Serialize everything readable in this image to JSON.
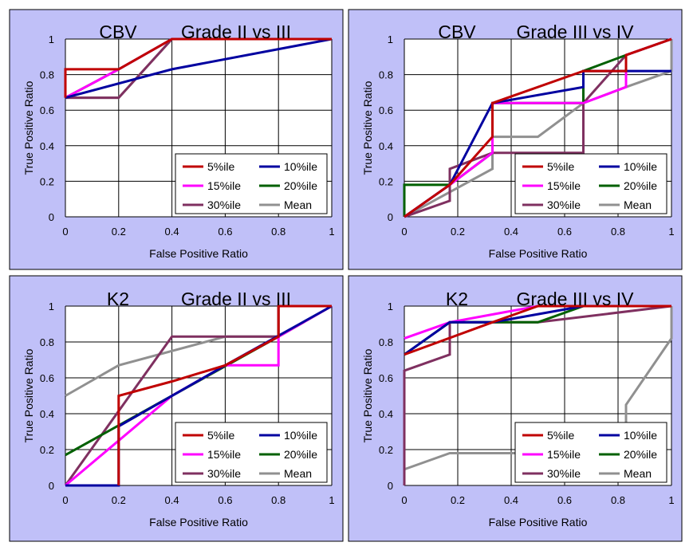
{
  "series_colors": {
    "5%ile": "#c00000",
    "10%ile": "#0000a0",
    "15%ile": "#ff00ff",
    "20%ile": "#006000",
    "30%ile": "#7f3060",
    "Mean": "#909090"
  },
  "chart_data": [
    {
      "type": "line",
      "title_param": "CBV",
      "title_grade": "Grade II vs III",
      "xlabel": "False Positive Ratio",
      "ylabel": "True Positive Ratio",
      "xlim": [
        0,
        1
      ],
      "ylim": [
        0,
        1
      ],
      "xticks": [
        "0",
        "0.2",
        "0.4",
        "0.6",
        "0.8",
        "1"
      ],
      "yticks": [
        "0",
        "0.2",
        "0.4",
        "0.6",
        "0.8",
        "1"
      ],
      "legend_position": "bottom-right",
      "series": [
        {
          "name": "5%ile",
          "points": [
            [
              0,
              0.67
            ],
            [
              0,
              0.83
            ],
            [
              0.2,
              0.83
            ],
            [
              0.4,
              1
            ],
            [
              1,
              1
            ]
          ]
        },
        {
          "name": "10%ile",
          "points": [
            [
              0,
              0.67
            ],
            [
              0.4,
              0.83
            ],
            [
              1,
              1
            ]
          ]
        },
        {
          "name": "15%ile",
          "points": [
            [
              0,
              0.67
            ],
            [
              0.2,
              0.83
            ],
            [
              0.4,
              1
            ],
            [
              1,
              1
            ]
          ]
        },
        {
          "name": "20%ile",
          "points": [
            [
              0,
              0.67
            ],
            [
              0.2,
              0.83
            ],
            [
              0.4,
              1
            ],
            [
              1,
              1
            ]
          ]
        },
        {
          "name": "30%ile",
          "points": [
            [
              0,
              0.67
            ],
            [
              0.2,
              0.67
            ],
            [
              0.4,
              1
            ],
            [
              1,
              1
            ]
          ]
        },
        {
          "name": "Mean",
          "points": [
            [
              0,
              0.67
            ],
            [
              0.2,
              0.67
            ],
            [
              0.4,
              1
            ],
            [
              1,
              1
            ]
          ]
        }
      ]
    },
    {
      "type": "line",
      "title_param": "CBV",
      "title_grade": "Grade III vs IV",
      "xlabel": "False Positive Ratio",
      "ylabel": "True Positive Ratio",
      "xlim": [
        0,
        1
      ],
      "ylim": [
        0,
        1
      ],
      "xticks": [
        "0",
        "0.2",
        "0.4",
        "0.6",
        "0.8",
        "1"
      ],
      "yticks": [
        "0",
        "0.2",
        "0.4",
        "0.6",
        "0.8",
        "1"
      ],
      "legend_position": "bottom-right",
      "series": [
        {
          "name": "5%ile",
          "points": [
            [
              0,
              0
            ],
            [
              0.17,
              0.18
            ],
            [
              0.33,
              0.45
            ],
            [
              0.33,
              0.64
            ],
            [
              0.67,
              0.82
            ],
            [
              0.83,
              0.82
            ],
            [
              0.83,
              0.91
            ],
            [
              1,
              1
            ]
          ]
        },
        {
          "name": "10%ile",
          "points": [
            [
              0,
              0
            ],
            [
              0.17,
              0.18
            ],
            [
              0.33,
              0.64
            ],
            [
              0.67,
              0.73
            ],
            [
              0.67,
              0.82
            ],
            [
              1,
              0.82
            ]
          ]
        },
        {
          "name": "15%ile",
          "points": [
            [
              0,
              0
            ],
            [
              0.17,
              0.18
            ],
            [
              0.33,
              0.36
            ],
            [
              0.33,
              0.64
            ],
            [
              0.67,
              0.64
            ],
            [
              0.83,
              0.73
            ],
            [
              0.83,
              0.91
            ],
            [
              1,
              1
            ]
          ]
        },
        {
          "name": "20%ile",
          "points": [
            [
              0,
              0
            ],
            [
              0,
              0.18
            ],
            [
              0.17,
              0.18
            ],
            [
              0.33,
              0.36
            ],
            [
              0.33,
              0.64
            ],
            [
              0.67,
              0.64
            ],
            [
              0.67,
              0.82
            ],
            [
              0.83,
              0.91
            ],
            [
              1,
              1
            ]
          ]
        },
        {
          "name": "30%ile",
          "points": [
            [
              0,
              0
            ],
            [
              0.17,
              0.09
            ],
            [
              0.17,
              0.27
            ],
            [
              0.33,
              0.36
            ],
            [
              0.67,
              0.36
            ],
            [
              0.67,
              0.64
            ],
            [
              0.83,
              0.91
            ],
            [
              1,
              1
            ]
          ]
        },
        {
          "name": "Mean",
          "points": [
            [
              0,
              0
            ],
            [
              0.33,
              0.27
            ],
            [
              0.33,
              0.45
            ],
            [
              0.5,
              0.45
            ],
            [
              0.67,
              0.64
            ],
            [
              0.83,
              0.73
            ],
            [
              1,
              0.82
            ],
            [
              1,
              1
            ]
          ]
        }
      ]
    },
    {
      "type": "line",
      "title_param": "K2",
      "title_grade": "Grade II vs III",
      "xlabel": "False Positive Ratio",
      "ylabel": "True Positive Ratio",
      "xlim": [
        0,
        1
      ],
      "ylim": [
        0,
        1
      ],
      "xticks": [
        "0",
        "0.2",
        "0.4",
        "0.6",
        "0.8",
        "1"
      ],
      "yticks": [
        "0",
        "0.2",
        "0.4",
        "0.6",
        "0.8",
        "1"
      ],
      "legend_position": "bottom-right",
      "series": [
        {
          "name": "5%ile",
          "points": [
            [
              0.2,
              0
            ],
            [
              0.2,
              0.5
            ],
            [
              0.4,
              0.58
            ],
            [
              0.6,
              0.67
            ],
            [
              0.8,
              0.83
            ],
            [
              0.8,
              1
            ],
            [
              1,
              1
            ]
          ]
        },
        {
          "name": "10%ile",
          "points": [
            [
              0,
              0
            ],
            [
              0.2,
              0
            ],
            [
              0.2,
              0.33
            ],
            [
              0.6,
              0.67
            ],
            [
              1,
              1
            ]
          ]
        },
        {
          "name": "15%ile",
          "points": [
            [
              0,
              0
            ],
            [
              0.4,
              0.5
            ],
            [
              0.6,
              0.67
            ],
            [
              0.8,
              0.67
            ],
            [
              0.8,
              0.83
            ],
            [
              1,
              1
            ]
          ]
        },
        {
          "name": "20%ile",
          "points": [
            [
              0,
              0.17
            ],
            [
              0.8,
              0.83
            ],
            [
              1,
              1
            ]
          ]
        },
        {
          "name": "30%ile",
          "points": [
            [
              0,
              0
            ],
            [
              0.4,
              0.83
            ],
            [
              0.8,
              0.83
            ],
            [
              0.8,
              1
            ],
            [
              1,
              1
            ]
          ]
        },
        {
          "name": "Mean",
          "points": [
            [
              0,
              0.5
            ],
            [
              0.2,
              0.67
            ],
            [
              0.6,
              0.83
            ],
            [
              0.8,
              0.83
            ],
            [
              0.8,
              1
            ],
            [
              1,
              1
            ]
          ]
        }
      ]
    },
    {
      "type": "line",
      "title_param": "K2",
      "title_grade": "Grade III vs IV",
      "xlabel": "False Positive Ratio",
      "ylabel": "True Positive Ratio",
      "xlim": [
        0,
        1
      ],
      "ylim": [
        0,
        1
      ],
      "xticks": [
        "0",
        "0.2",
        "0.4",
        "0.6",
        "0.8",
        "1"
      ],
      "yticks": [
        "0",
        "0.2",
        "0.4",
        "0.6",
        "0.8",
        "1"
      ],
      "legend_position": "bottom-right",
      "series": [
        {
          "name": "5%ile",
          "points": [
            [
              0,
              0.73
            ],
            [
              0.33,
              0.91
            ],
            [
              0.5,
              1
            ],
            [
              1,
              1
            ]
          ]
        },
        {
          "name": "10%ile",
          "points": [
            [
              0,
              0.73
            ],
            [
              0.17,
              0.91
            ],
            [
              0.33,
              0.91
            ],
            [
              0.67,
              1
            ],
            [
              1,
              1
            ]
          ]
        },
        {
          "name": "15%ile",
          "points": [
            [
              0,
              0.82
            ],
            [
              0.17,
              0.91
            ],
            [
              0.5,
              1
            ],
            [
              1,
              1
            ]
          ]
        },
        {
          "name": "20%ile",
          "points": [
            [
              0,
              0.73
            ],
            [
              0.17,
              0.91
            ],
            [
              0.5,
              0.91
            ],
            [
              0.67,
              1
            ],
            [
              1,
              1
            ]
          ]
        },
        {
          "name": "30%ile",
          "points": [
            [
              0,
              0
            ],
            [
              0,
              0.64
            ],
            [
              0.17,
              0.73
            ],
            [
              0.17,
              0.91
            ],
            [
              0.5,
              0.91
            ],
            [
              1,
              1
            ]
          ]
        },
        {
          "name": "Mean",
          "points": [
            [
              0,
              0.09
            ],
            [
              0.17,
              0.18
            ],
            [
              0.83,
              0.18
            ],
            [
              0.83,
              0.45
            ],
            [
              1,
              0.82
            ],
            [
              1,
              1
            ]
          ]
        }
      ]
    }
  ]
}
